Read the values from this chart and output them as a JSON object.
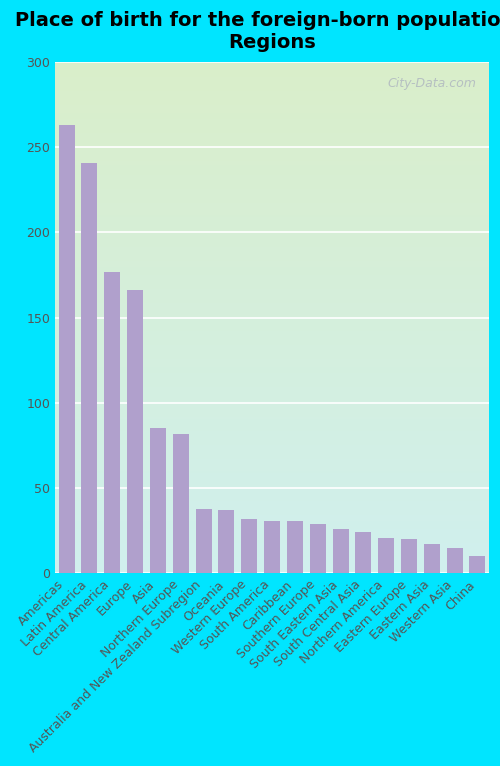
{
  "title": "Place of birth for the foreign-born population -\nRegions",
  "categories": [
    "Americas",
    "Latin America",
    "Central America",
    "Europe",
    "Asia",
    "Northern Europe",
    "Australia and New Zealand Subregion",
    "Oceania",
    "Western Europe",
    "South America",
    "Caribbean",
    "Southern Europe",
    "South Eastern Asia",
    "South Central Asia",
    "Northern America",
    "Eastern Europe",
    "Eastern Asia",
    "Western Asia",
    "China"
  ],
  "values": [
    263,
    241,
    177,
    166,
    85,
    82,
    38,
    37,
    32,
    31,
    31,
    29,
    26,
    24,
    21,
    20,
    17,
    15,
    10
  ],
  "bar_color": "#b0a0cc",
  "outer_bg": "#00e5ff",
  "grad_top": "#daeeca",
  "grad_bottom": "#d0f0ee",
  "ylim": [
    0,
    300
  ],
  "yticks": [
    0,
    50,
    100,
    150,
    200,
    250,
    300
  ],
  "title_fontsize": 14,
  "tick_fontsize": 9,
  "watermark": "City-Data.com"
}
